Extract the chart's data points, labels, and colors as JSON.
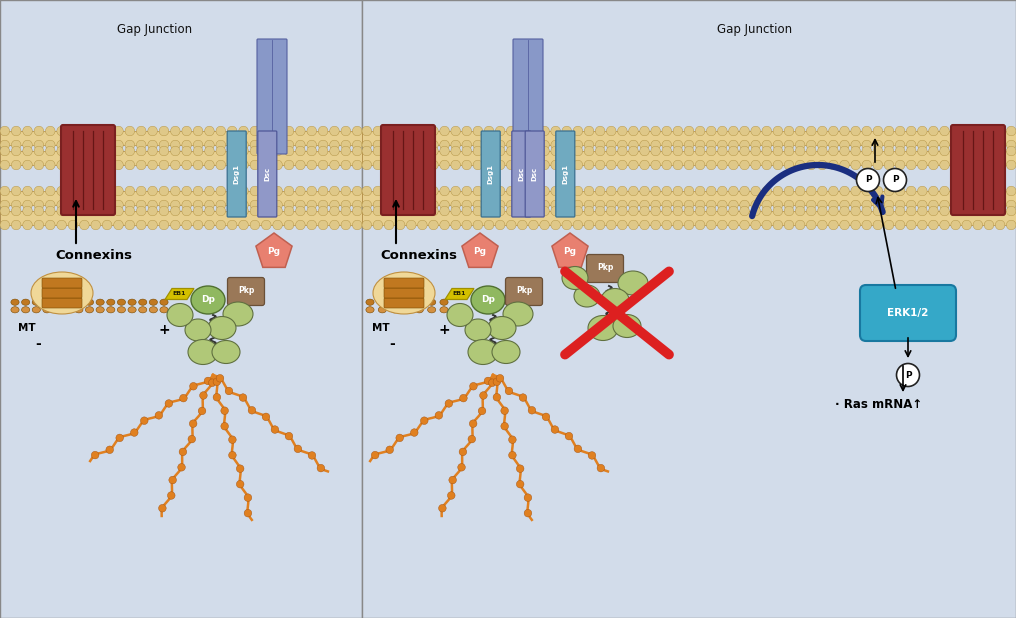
{
  "bg_color": "#cdd5e0",
  "panel1_bg": "#d4dce8",
  "panel2_bg": "#d4dce8",
  "membrane_fill": "#e8d090",
  "membrane_dot": "#d4a840",
  "connexin_dark": "#7a2020",
  "connexin_mid": "#9a3030",
  "connexin_stripe": "#5a1010",
  "dsg1_color": "#70aac0",
  "dsc_color": "#9098c8",
  "pg_color": "#e88070",
  "pg_outline": "#c06050",
  "dp_color": "#90b860",
  "dp_outline": "#507030",
  "pkp_color": "#9a7858",
  "pkp_outline": "#6a5038",
  "eb1_color": "#d4c000",
  "eb1_outline": "#a09000",
  "mt_bead1": "#c07820",
  "mt_bead2": "#d49040",
  "actin_color": "#e08020",
  "actin_outline": "#a05010",
  "green_blob": "#b0c878",
  "green_blob_dark": "#90a858",
  "green_blob_outline": "#607040",
  "coil_color": "#333333",
  "erk_color": "#35a8c8",
  "erk_outline": "#1878a0",
  "p_fill": "#ffffff",
  "p_outline": "#222222",
  "red_x": "#dd2020",
  "blue_arrow": "#1a2e80",
  "black": "#111111",
  "gap_junc_label": "Gap Junction",
  "connexins_label": "Connexins",
  "mt_label": "MT",
  "ras_label": "Ras mRNA",
  "erk_label": "ERK1/2",
  "p_label": "P",
  "dsg1_label": "Dsg1",
  "dsc_label": "Dsc",
  "pg_label": "Pg",
  "dp_label": "Dp",
  "pkp_label": "Pkp",
  "eb1_label": "EB1",
  "plus_label": "+",
  "minus_label": "-"
}
